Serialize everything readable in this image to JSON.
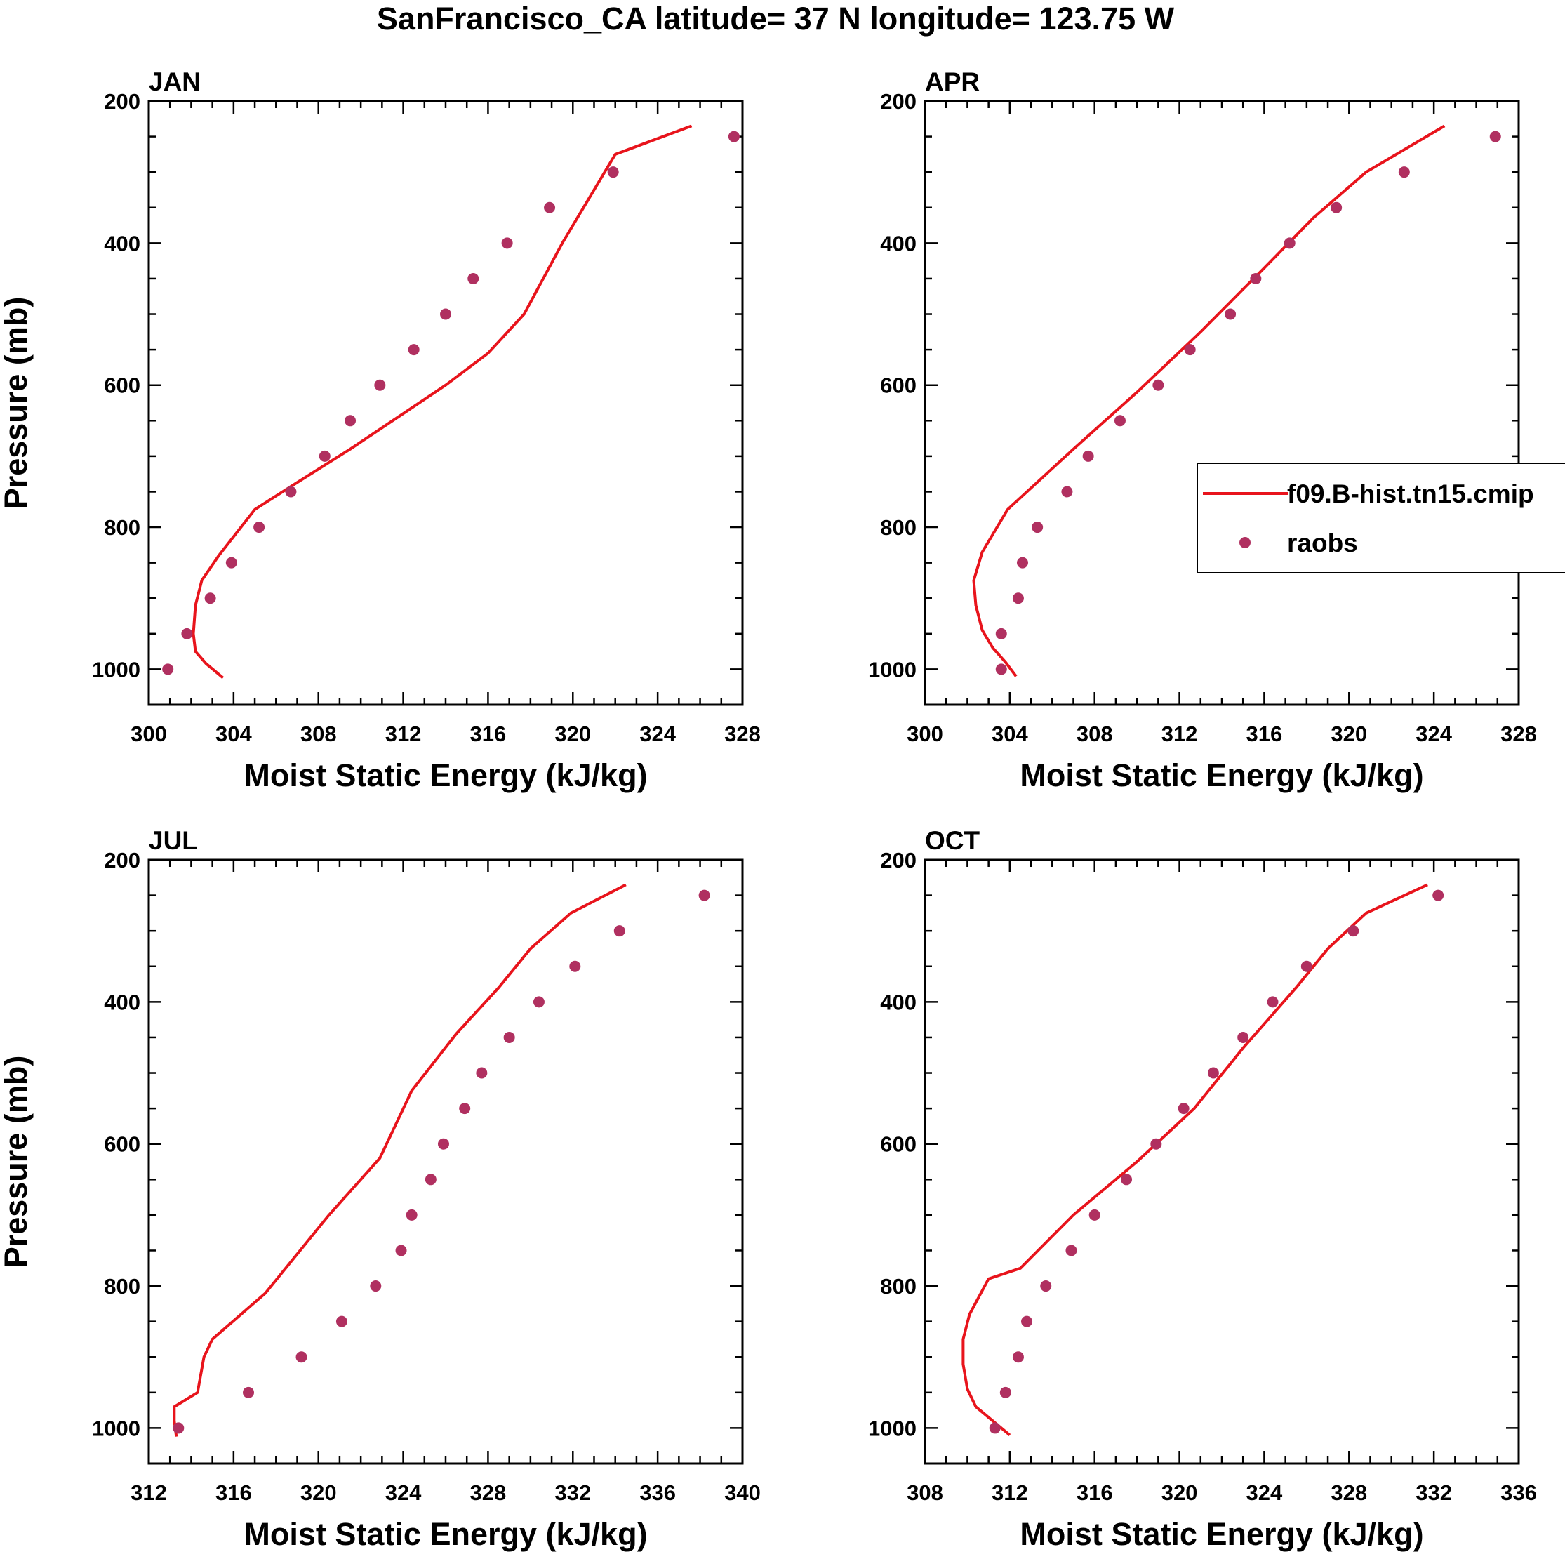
{
  "figure_title": "SanFrancisco_CA  latitude= 37 N longitude= 123.75 W",
  "legend": {
    "model_label": "f09.B-hist.tn15.cmip",
    "obs_label": "raobs",
    "model_color": "#e8141c",
    "obs_color": "#b03060"
  },
  "chart_data": [
    {
      "type": "line",
      "panel_label": "JAN",
      "xlabel": "Moist Static Energy (kJ/kg)",
      "ylabel": "Pressure (mb)",
      "xlim": [
        300,
        328
      ],
      "xticks": [
        "300",
        "304",
        "308",
        "312",
        "316",
        "320",
        "324",
        "328"
      ],
      "ylim": [
        1050,
        200
      ],
      "yticks": [
        "200",
        "400",
        "600",
        "800",
        "1000"
      ],
      "series": [
        {
          "name": "f09.B-hist.tn15.cmip",
          "kind": "line",
          "x": [
            303.5,
            302.7,
            302.2,
            302.1,
            302.2,
            302.5,
            303.3,
            305.0,
            307.0,
            309.5,
            312.0,
            314.0,
            316.0,
            317.7,
            319.5,
            320.5,
            322.0,
            325.6
          ],
          "y": [
            1012,
            992,
            975,
            950,
            910,
            875,
            840,
            775,
            737,
            690,
            640,
            600,
            555,
            500,
            400,
            350,
            275,
            235
          ]
        },
        {
          "name": "raobs",
          "kind": "scatter",
          "x": [
            300.9,
            301.8,
            302.9,
            303.9,
            305.2,
            306.7,
            308.3,
            309.5,
            310.9,
            312.5,
            314.0,
            315.3,
            316.9,
            318.9,
            321.9,
            327.6
          ],
          "y": [
            1000,
            950,
            900,
            850,
            800,
            750,
            700,
            650,
            600,
            550,
            500,
            450,
            400,
            350,
            300,
            250
          ]
        }
      ]
    },
    {
      "type": "line",
      "panel_label": "APR",
      "xlabel": "Moist Static Energy (kJ/kg)",
      "ylabel": "",
      "xlim": [
        300,
        328
      ],
      "xticks": [
        "300",
        "304",
        "308",
        "312",
        "316",
        "320",
        "324",
        "328"
      ],
      "ylim": [
        1050,
        200
      ],
      "yticks": [
        "200",
        "400",
        "600",
        "800",
        "1000"
      ],
      "series": [
        {
          "name": "f09.B-hist.tn15.cmip",
          "kind": "line",
          "x": [
            304.3,
            303.8,
            303.2,
            302.7,
            302.4,
            302.3,
            302.7,
            303.9,
            307.0,
            310.0,
            313.0,
            316.0,
            318.3,
            320.8,
            324.5
          ],
          "y": [
            1010,
            990,
            970,
            945,
            910,
            875,
            835,
            775,
            690,
            610,
            525,
            435,
            365,
            300,
            235
          ]
        },
        {
          "name": "raobs",
          "kind": "scatter",
          "x": [
            303.6,
            303.6,
            304.4,
            304.6,
            305.3,
            306.7,
            307.7,
            309.2,
            311.0,
            312.5,
            314.4,
            315.6,
            317.2,
            319.4,
            322.6,
            326.9
          ],
          "y": [
            1000,
            950,
            900,
            850,
            800,
            750,
            700,
            650,
            600,
            550,
            500,
            450,
            400,
            350,
            300,
            250
          ]
        }
      ]
    },
    {
      "type": "line",
      "panel_label": "JUL",
      "xlabel": "Moist Static Energy (kJ/kg)",
      "ylabel": "Pressure (mb)",
      "xlim": [
        312,
        340
      ],
      "xticks": [
        "312",
        "316",
        "320",
        "324",
        "328",
        "332",
        "336",
        "340"
      ],
      "ylim": [
        1050,
        200
      ],
      "yticks": [
        "200",
        "400",
        "600",
        "800",
        "1000"
      ],
      "series": [
        {
          "name": "f09.B-hist.tn15.cmip",
          "kind": "line",
          "x": [
            313.3,
            313.2,
            313.2,
            314.3,
            314.6,
            315.0,
            317.5,
            320.5,
            322.9,
            324.4,
            326.5,
            328.5,
            330.0,
            331.9,
            334.5
          ],
          "y": [
            1012,
            990,
            970,
            950,
            900,
            875,
            810,
            700,
            620,
            525,
            445,
            380,
            325,
            275,
            235
          ]
        },
        {
          "name": "raobs",
          "kind": "scatter",
          "x": [
            313.4,
            316.7,
            319.2,
            321.1,
            322.7,
            323.9,
            324.4,
            325.3,
            325.9,
            326.9,
            327.7,
            329.0,
            330.4,
            332.1,
            334.2,
            338.2
          ],
          "y": [
            1000,
            950,
            900,
            850,
            800,
            750,
            700,
            650,
            600,
            550,
            500,
            450,
            400,
            350,
            300,
            250
          ]
        }
      ]
    },
    {
      "type": "line",
      "panel_label": "OCT",
      "xlabel": "Moist Static Energy (kJ/kg)",
      "ylabel": "",
      "xlim": [
        308,
        336
      ],
      "xticks": [
        "308",
        "312",
        "316",
        "320",
        "324",
        "328",
        "332",
        "336"
      ],
      "ylim": [
        1050,
        200
      ],
      "yticks": [
        "200",
        "400",
        "600",
        "800",
        "1000"
      ],
      "series": [
        {
          "name": "f09.B-hist.tn15.cmip",
          "kind": "line",
          "x": [
            312.0,
            311.2,
            310.4,
            310.0,
            309.8,
            309.8,
            310.1,
            311.0,
            312.5,
            315.0,
            318.0,
            320.7,
            323.0,
            325.5,
            327.0,
            328.8,
            331.7
          ],
          "y": [
            1010,
            990,
            970,
            945,
            910,
            875,
            840,
            790,
            775,
            700,
            625,
            550,
            465,
            380,
            325,
            275,
            235
          ]
        },
        {
          "name": "raobs",
          "kind": "scatter",
          "x": [
            311.3,
            311.8,
            312.4,
            312.8,
            313.7,
            314.9,
            316.0,
            317.5,
            318.9,
            320.2,
            321.6,
            323.0,
            324.4,
            326.0,
            328.2,
            332.2
          ],
          "y": [
            1000,
            950,
            900,
            850,
            800,
            750,
            700,
            650,
            600,
            550,
            500,
            450,
            400,
            350,
            300,
            250
          ]
        }
      ]
    }
  ]
}
